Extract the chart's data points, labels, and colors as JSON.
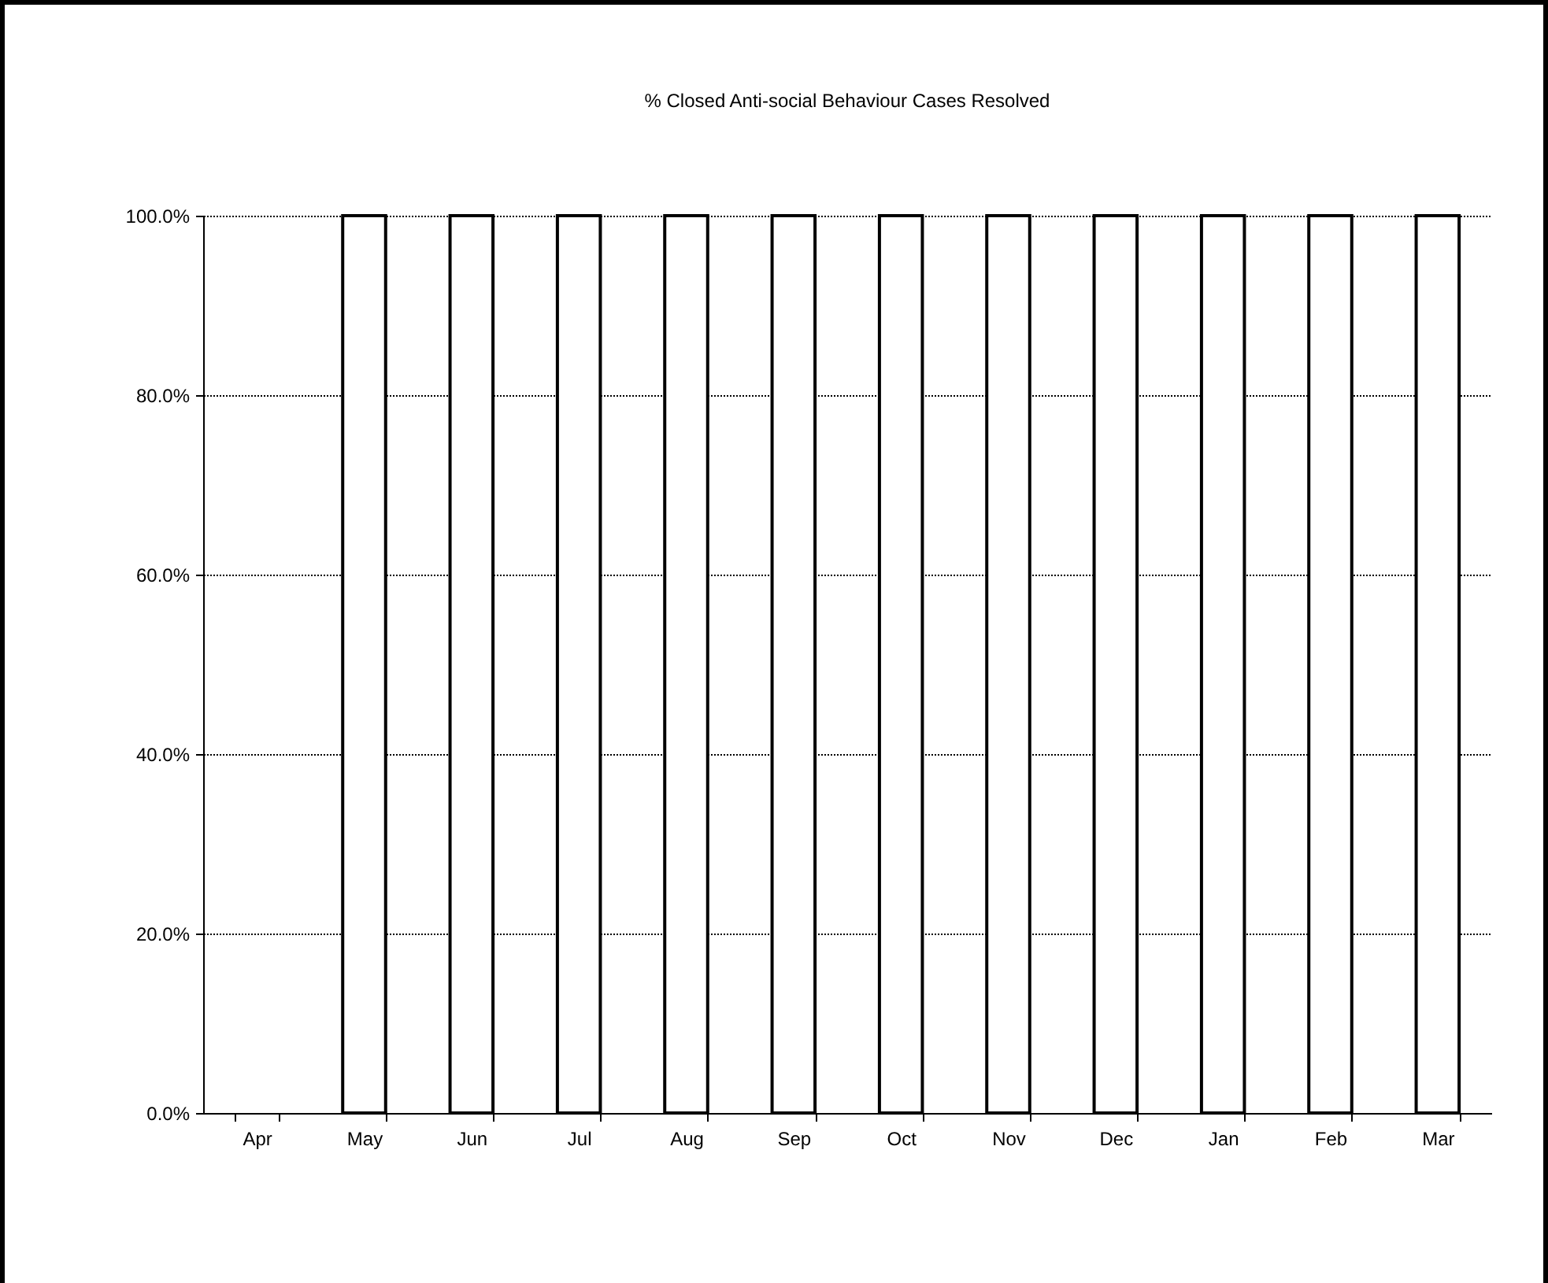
{
  "chart_data": {
    "type": "bar",
    "title": "% Closed Anti-social Behaviour Cases Resolved",
    "categories": [
      "Apr",
      "May",
      "Jun",
      "Jul",
      "Aug",
      "Sep",
      "Oct",
      "Nov",
      "Dec",
      "Jan",
      "Feb",
      "Mar"
    ],
    "values": [
      null,
      100,
      100,
      100,
      100,
      100,
      100,
      100,
      100,
      100,
      100,
      100
    ],
    "color": "#ffffff",
    "ylim": [
      0,
      100
    ],
    "yticks": [
      {
        "value": 0,
        "label": "0.0%"
      },
      {
        "value": 20,
        "label": "20.0%"
      },
      {
        "value": 40,
        "label": "40.0%"
      },
      {
        "value": 60,
        "label": "60.0%"
      },
      {
        "value": 80,
        "label": "80.0%"
      },
      {
        "value": 100,
        "label": "100.0%"
      }
    ],
    "grid": "y"
  }
}
